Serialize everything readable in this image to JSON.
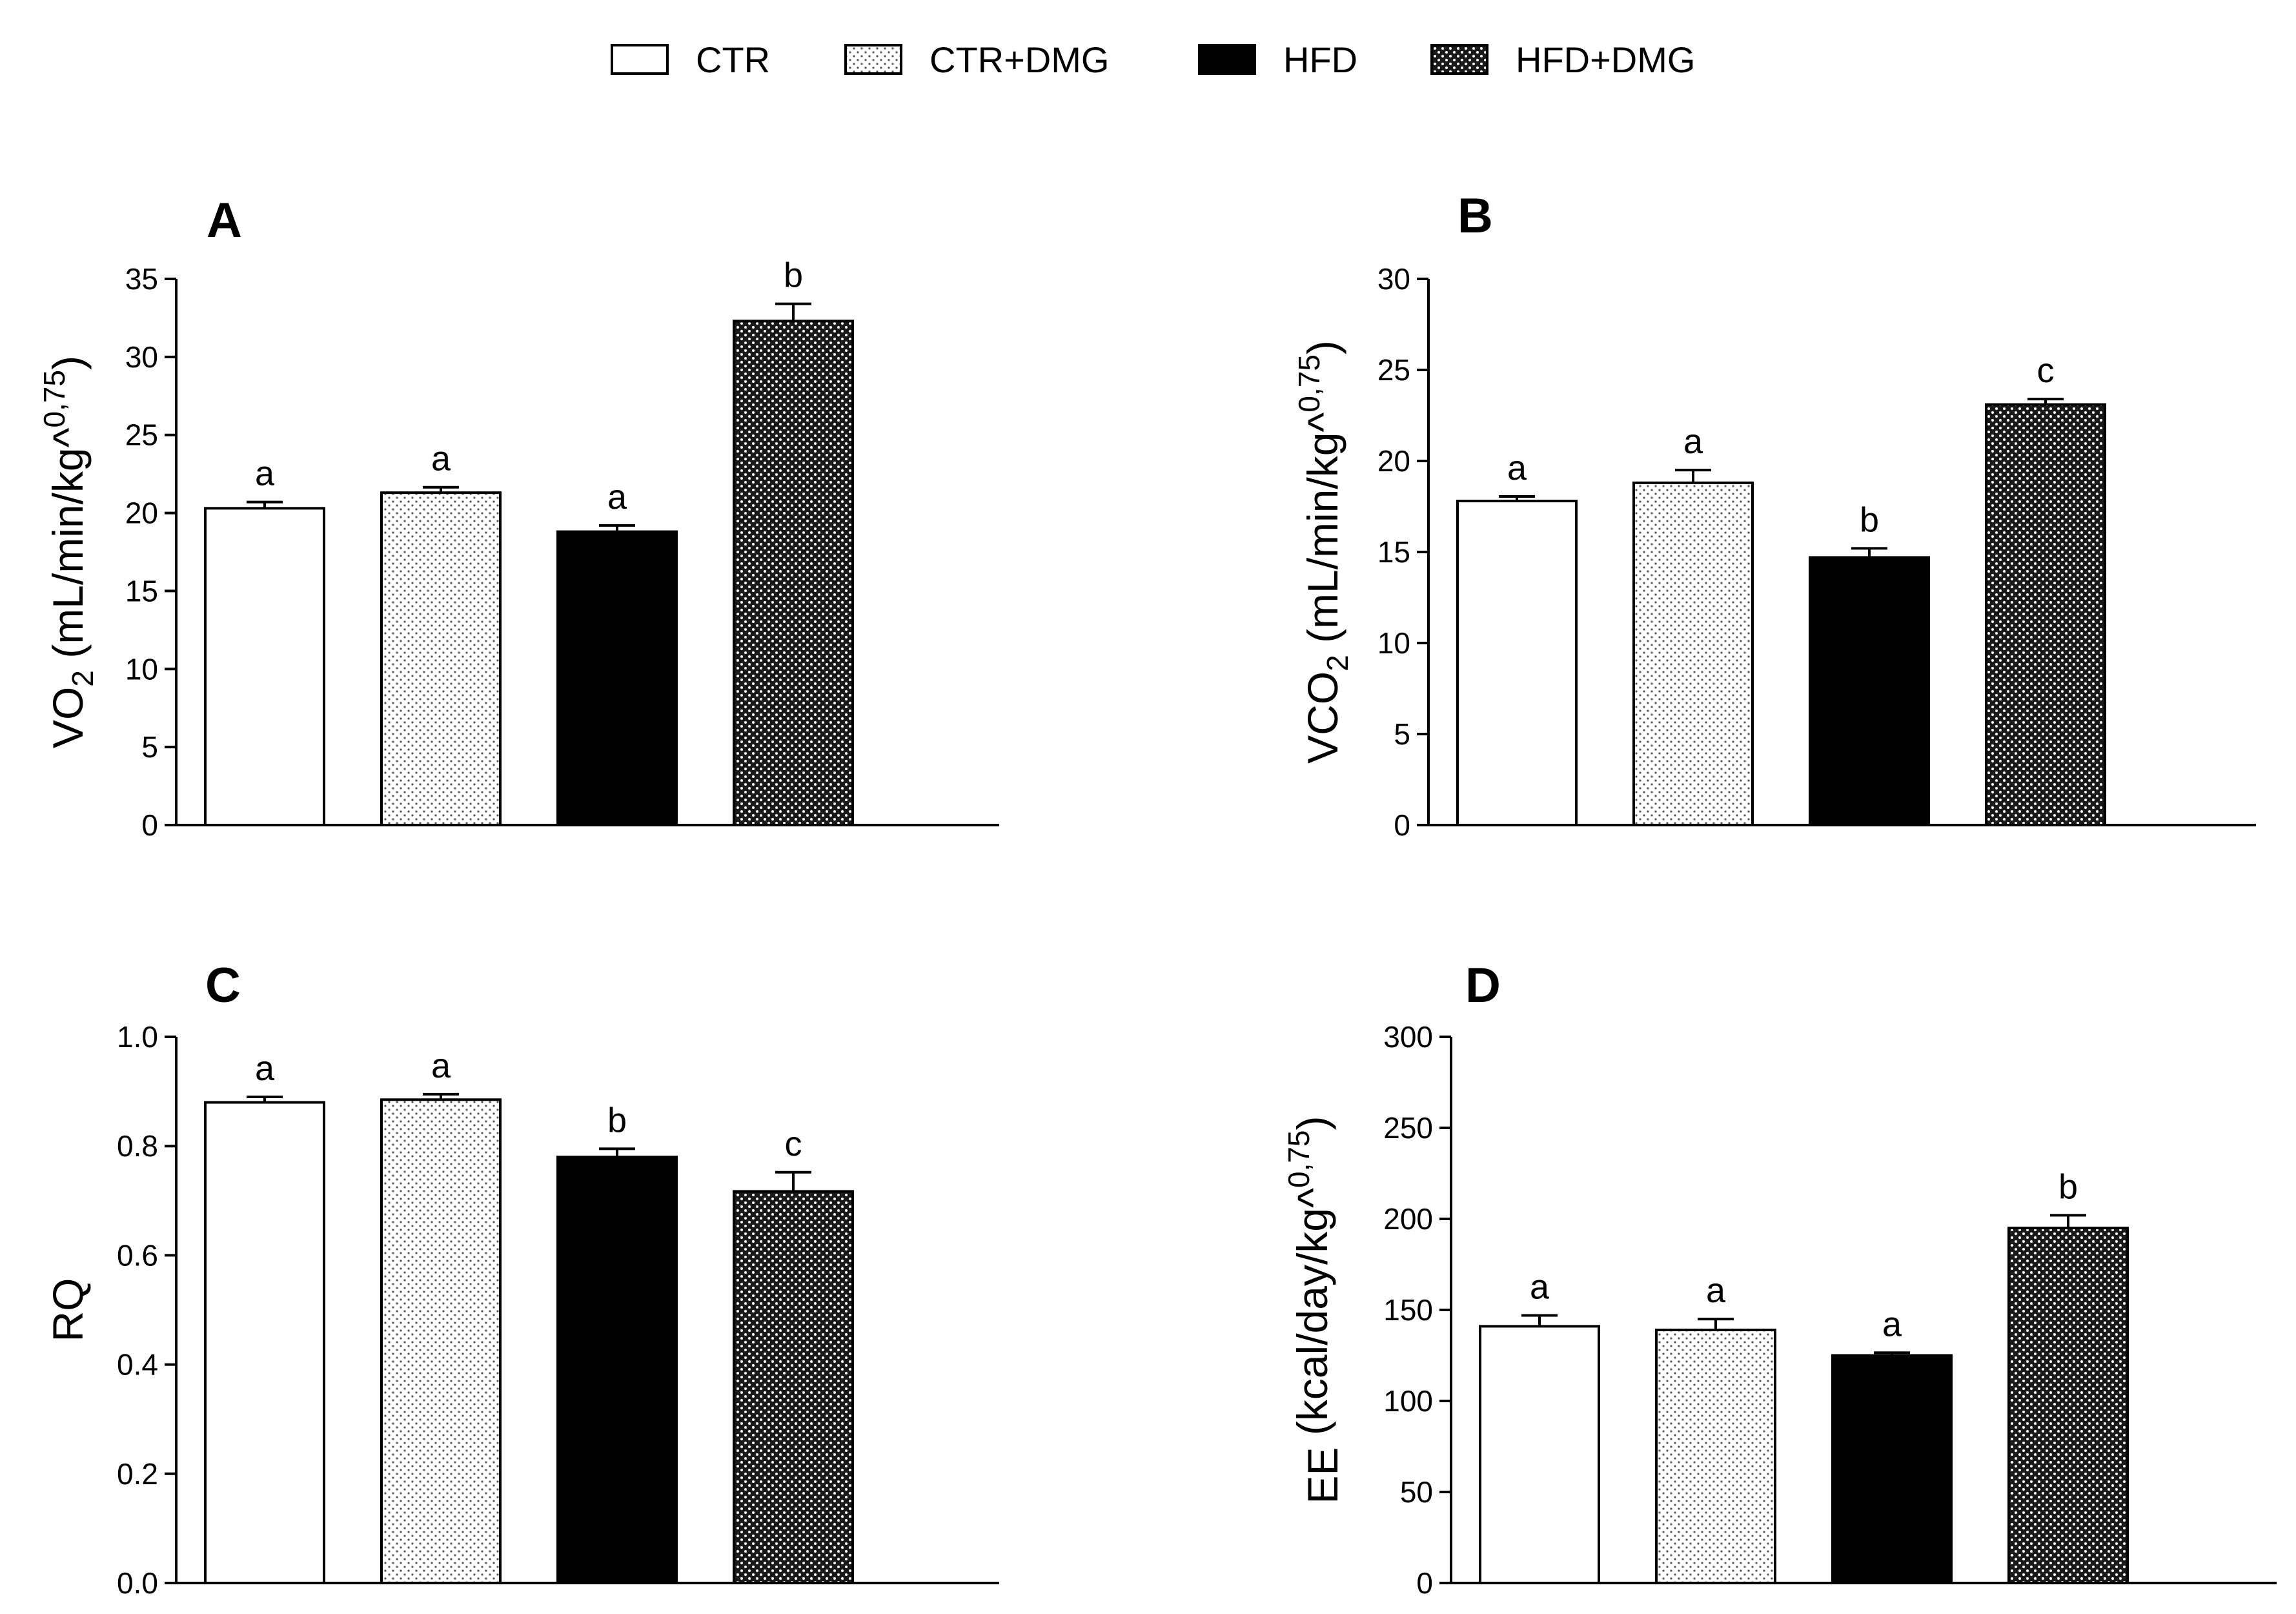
{
  "legend": {
    "groups": [
      {
        "name": "CTR",
        "fill": "white"
      },
      {
        "name": "CTR+DMG",
        "fill": "light-dotted"
      },
      {
        "name": "HFD",
        "fill": "black"
      },
      {
        "name": "HFD+DMG",
        "fill": "dark-dotted"
      }
    ]
  },
  "colors": {
    "axis": "#000000",
    "bar_outline": "#000000",
    "black_fill": "#000000",
    "white_fill": "#ffffff"
  },
  "chart_data": [
    {
      "type": "bar",
      "panel": "A",
      "ylabel_main": "VO",
      "ylabel_sub": "2",
      "ylabel_rest": " (mL/min/kg^",
      "ylabel_sup": "0,75",
      "ylabel_close": ")",
      "categories": [
        "CTR",
        "CTR+DMG",
        "HFD",
        "HFD+DMG"
      ],
      "values": [
        20.3,
        21.3,
        18.8,
        32.3
      ],
      "errors": [
        0.4,
        0.35,
        0.4,
        1.1
      ],
      "significance": [
        "a",
        "a",
        "a",
        "b"
      ],
      "ylim": [
        0,
        35
      ],
      "yticks": [
        0,
        5,
        10,
        15,
        20,
        25,
        30,
        35
      ],
      "ytick_labels": [
        "0",
        "5",
        "10",
        "15",
        "20",
        "25",
        "30",
        "35"
      ]
    },
    {
      "type": "bar",
      "panel": "B",
      "ylabel_main": "VCO",
      "ylabel_sub": "2",
      "ylabel_rest": " (mL/min/kg^",
      "ylabel_sup": "0,75",
      "ylabel_close": ")",
      "categories": [
        "CTR",
        "CTR+DMG",
        "HFD",
        "HFD+DMG"
      ],
      "values": [
        17.8,
        18.8,
        14.7,
        23.1
      ],
      "errors": [
        0.25,
        0.7,
        0.5,
        0.3
      ],
      "significance": [
        "a",
        "a",
        "b",
        "c"
      ],
      "ylim": [
        0,
        30
      ],
      "yticks": [
        0,
        5,
        10,
        15,
        20,
        25,
        30
      ],
      "ytick_labels": [
        "0",
        "5",
        "10",
        "15",
        "20",
        "25",
        "30"
      ]
    },
    {
      "type": "bar",
      "panel": "C",
      "ylabel_main": "RQ",
      "ylabel_sub": "",
      "ylabel_rest": "",
      "ylabel_sup": "",
      "ylabel_close": "",
      "categories": [
        "CTR",
        "CTR+DMG",
        "HFD",
        "HFD+DMG"
      ],
      "values": [
        0.88,
        0.885,
        0.78,
        0.717
      ],
      "errors": [
        0.01,
        0.01,
        0.015,
        0.035
      ],
      "significance": [
        "a",
        "a",
        "b",
        "c"
      ],
      "ylim": [
        0,
        1.0
      ],
      "yticks": [
        0,
        0.2,
        0.4,
        0.6,
        0.8,
        1.0
      ],
      "ytick_labels": [
        "0.0",
        "0.2",
        "0.4",
        "0.6",
        "0.8",
        "1.0"
      ]
    },
    {
      "type": "bar",
      "panel": "D",
      "ylabel_main": "EE",
      "ylabel_sub": "",
      "ylabel_rest": " (kcal/day/kg^",
      "ylabel_sup": "0,75",
      "ylabel_close": ")",
      "categories": [
        "CTR",
        "CTR+DMG",
        "HFD",
        "HFD+DMG"
      ],
      "values": [
        141,
        139,
        125,
        195
      ],
      "errors": [
        6,
        6,
        1.5,
        7
      ],
      "significance": [
        "a",
        "a",
        "a",
        "b"
      ],
      "ylim": [
        0,
        300
      ],
      "yticks": [
        0,
        50,
        100,
        150,
        200,
        250,
        300
      ],
      "ytick_labels": [
        "0",
        "50",
        "100",
        "150",
        "200",
        "250",
        "300"
      ]
    }
  ]
}
